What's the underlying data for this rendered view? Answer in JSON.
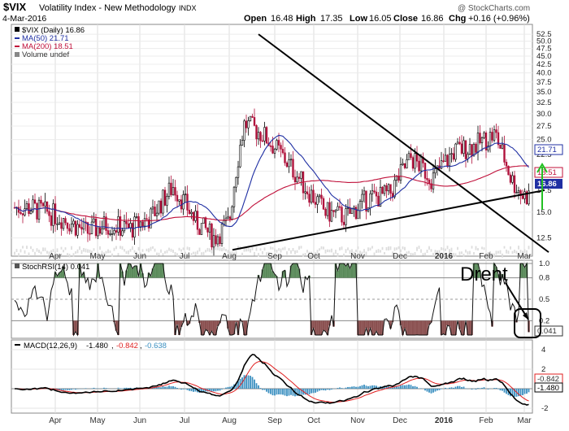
{
  "header": {
    "symbol": "$VIX",
    "name": "Volatility Index - New Methodology",
    "exchange": "INDX",
    "date": "4-Mar-2016",
    "open_label": "Open",
    "open": "16.48",
    "high_label": "High",
    "high": "17.35",
    "low_label": "Low",
    "low": "16.05",
    "close_label": "Close",
    "close": "16.86",
    "chg_label": "Chg",
    "chg": "+0.16 (+0.96%)",
    "watermark": "@ StockCharts.com"
  },
  "legend": {
    "price": "$VIX (Daily) 16.86",
    "ma50": "MA(50) 21.71",
    "ma200": "MA(200) 18.51",
    "volume": "Volume undef"
  },
  "stoch_label": "StochRSI(14) 0.041",
  "macd_legend": {
    "name": "MACD(12,26,9)",
    "macd": "-1.480",
    "signal": "-0.842",
    "hist": "-0.638"
  },
  "annotation": "Drent",
  "colors": {
    "ma50": "#1f2fa3",
    "ma200": "#c0103a",
    "up_candle": "#000000",
    "down_candle": "#b0103a",
    "stoch_over": "#5a8a5a",
    "stoch_under": "#8a5050",
    "macd_hist": "#3a8fc0",
    "macd_signal": "#e02020",
    "arrow_green": "#22c022",
    "price_box": "#1f2fa3",
    "ma200_box": "#c0103a",
    "ma50_box": "#1f2fa3"
  },
  "chart_data": [
    {
      "type": "candlestick",
      "title": "$VIX Volatility Index - New Methodology INDX",
      "x_months": [
        "Apr",
        "May",
        "Jun",
        "Jul",
        "Aug",
        "Sep",
        "Oct",
        "Nov",
        "Dec",
        "2016",
        "Feb",
        "Mar"
      ],
      "y_ticks": [
        "12.5",
        "15.0",
        "17.5",
        "20.0",
        "22.5",
        "25.0",
        "27.5",
        "30.0",
        "32.5",
        "35.0",
        "37.5",
        "40.0",
        "42.5",
        "45.0",
        "47.5",
        "50.0",
        "52.5"
      ],
      "y_scale": "log",
      "ylim": [
        11,
        55
      ],
      "last_values": {
        "price": "16.86",
        "ma50": "21.71",
        "ma200": "18.51"
      },
      "close_points": [
        [
          "Apr",
          15.5
        ],
        [
          "Apr",
          14.5
        ],
        [
          "May",
          13.0
        ],
        [
          "May",
          13.8
        ],
        [
          "Jun",
          13.3
        ],
        [
          "Jun",
          14.5
        ],
        [
          "Jul",
          18.0
        ],
        [
          "Jul",
          14.0
        ],
        [
          "Aug",
          12.5
        ],
        [
          "Aug",
          14.0
        ],
        [
          "Aug",
          28.0
        ],
        [
          "Sep",
          26.0
        ],
        [
          "Sep",
          22.0
        ],
        [
          "Oct",
          18.0
        ],
        [
          "Oct",
          15.0
        ],
        [
          "Nov",
          14.5
        ],
        [
          "Nov",
          16.5
        ],
        [
          "Dec",
          17.0
        ],
        [
          "Dec",
          22.0
        ],
        [
          "2016",
          19.0
        ],
        [
          "2016",
          23.0
        ],
        [
          "Feb",
          24.0
        ],
        [
          "Feb",
          26.0
        ],
        [
          "Mar",
          19.0
        ],
        [
          "Mar",
          16.86
        ]
      ],
      "trendline_high": {
        "from": [
          "Aug",
          52.5
        ],
        "to": [
          "Mar",
          15.5
        ]
      },
      "trendline_low": {
        "from": [
          "Aug",
          11.5
        ],
        "to": [
          "Mar",
          17.5
        ]
      }
    },
    {
      "type": "line",
      "title": "StochRSI(14)",
      "y_ticks": [
        "0.2",
        "0.5",
        "0.8",
        "1.0"
      ],
      "ylim": [
        0,
        1
      ],
      "last_value": "0.041"
    },
    {
      "type": "line",
      "title": "MACD(12,26,9)",
      "y_ticks": [
        "4",
        "2",
        "0",
        "-2"
      ],
      "ylim": [
        -2.5,
        5
      ],
      "last_values": {
        "macd": "-1.480",
        "signal": "-0.842",
        "hist": "-0.638"
      }
    }
  ]
}
